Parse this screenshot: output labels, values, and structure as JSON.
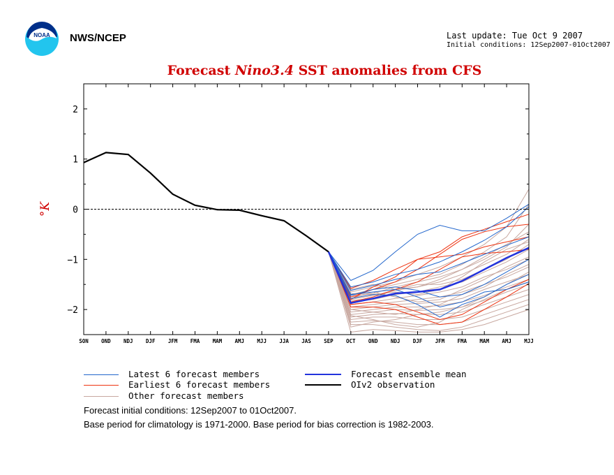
{
  "header": {
    "org": "NWS/NCEP",
    "last_update": "Last update: Tue Oct 9 2007",
    "initial_conditions": "Initial conditions: 12Sep2007-01Oct2007",
    "logo_text": "NOAA"
  },
  "chart_data": {
    "type": "line",
    "title_prefix": "Forecast",
    "title_italic": "Nino3.4",
    "title_suffix": "SST anomalies from CFS",
    "ylabel": "°K",
    "ylim": [
      -2.5,
      2.5
    ],
    "yticks": [
      2,
      1,
      0,
      -1,
      -2
    ],
    "categories": [
      "SON",
      "OND",
      "NDJ",
      "DJF",
      "JFM",
      "FMA",
      "MAM",
      "AMJ",
      "MJJ",
      "JJA",
      "JAS",
      "SEP",
      "OCT",
      "OND",
      "NDJ",
      "DJF",
      "JFM",
      "FMA",
      "MAM",
      "AMJ",
      "MJJ"
    ],
    "zero_line": "dashed",
    "observation": {
      "name": "OIv2 observation",
      "color": "#000000",
      "values": [
        0.93,
        1.13,
        1.09,
        0.72,
        0.3,
        0.08,
        -0.01,
        -0.02,
        -0.13,
        -0.23,
        -0.53,
        -0.85
      ]
    },
    "ensemble_mean": {
      "name": "Forecast ensemble mean",
      "color": "#2233dd",
      "start_index": 11,
      "values": [
        -0.85,
        -1.87,
        -1.78,
        -1.68,
        -1.65,
        -1.6,
        -1.43,
        -1.2,
        -0.97,
        -0.77
      ]
    },
    "latest_members": {
      "name": "Latest 6 forecast members",
      "color": "#2266cc",
      "start_index": 11,
      "members": [
        [
          -0.85,
          -1.42,
          -1.22,
          -0.85,
          -0.5,
          -0.32,
          -0.43,
          -0.43,
          -0.18,
          0.1
        ],
        [
          -0.85,
          -1.55,
          -1.45,
          -1.3,
          -1.2,
          -1.05,
          -0.85,
          -0.62,
          -0.35,
          0.05
        ],
        [
          -0.85,
          -1.62,
          -1.52,
          -1.4,
          -1.3,
          -1.25,
          -1.08,
          -0.9,
          -0.72,
          -0.55
        ],
        [
          -0.85,
          -1.72,
          -1.6,
          -1.55,
          -1.62,
          -1.75,
          -1.7,
          -1.5,
          -1.25,
          -1.0
        ],
        [
          -0.85,
          -1.78,
          -1.7,
          -1.72,
          -1.9,
          -2.15,
          -1.9,
          -1.75,
          -1.5,
          -1.3
        ],
        [
          -0.85,
          -1.7,
          -1.65,
          -1.6,
          -1.75,
          -1.95,
          -1.85,
          -1.65,
          -1.6,
          -1.45
        ]
      ]
    },
    "earliest_members": {
      "name": "Earliest 6 forecast members",
      "color": "#ee3311",
      "start_index": 11,
      "members": [
        [
          -0.85,
          -1.58,
          -1.42,
          -1.2,
          -1.0,
          -0.85,
          -0.55,
          -0.4,
          -0.25,
          -0.1
        ],
        [
          -0.85,
          -1.75,
          -1.6,
          -1.45,
          -1.2,
          -0.9,
          -0.6,
          -0.45,
          -0.35,
          -0.3
        ],
        [
          -0.85,
          -1.8,
          -1.55,
          -1.35,
          -1.0,
          -0.95,
          -0.9,
          -0.75,
          -0.65,
          -0.55
        ],
        [
          -0.85,
          -1.85,
          -1.75,
          -1.6,
          -1.45,
          -1.2,
          -0.95,
          -0.88,
          -0.85,
          -0.8
        ],
        [
          -0.85,
          -1.95,
          -1.95,
          -2.0,
          -2.15,
          -2.3,
          -2.25,
          -2.0,
          -1.75,
          -1.48
        ],
        [
          -0.85,
          -1.9,
          -1.85,
          -1.9,
          -2.05,
          -2.2,
          -2.1,
          -1.85,
          -1.6,
          -1.4
        ]
      ]
    },
    "other_members": {
      "name": "Other forecast members",
      "color": "#c8a8a0",
      "start_index": 11,
      "members": [
        [
          -0.85,
          -1.65,
          -1.55,
          -1.45,
          -1.3,
          -1.15,
          -0.95,
          -0.7,
          -0.35,
          0.4
        ],
        [
          -0.85,
          -1.7,
          -1.6,
          -1.5,
          -1.4,
          -1.3,
          -1.1,
          -0.85,
          -0.55,
          0.1
        ],
        [
          -0.85,
          -1.75,
          -1.68,
          -1.55,
          -1.45,
          -1.35,
          -1.2,
          -1.0,
          -0.75,
          -0.3
        ],
        [
          -0.85,
          -1.8,
          -1.72,
          -1.62,
          -1.55,
          -1.45,
          -1.3,
          -1.1,
          -0.9,
          -0.6
        ],
        [
          -0.85,
          -1.85,
          -1.8,
          -1.7,
          -1.65,
          -1.55,
          -1.45,
          -1.25,
          -1.05,
          -0.8
        ],
        [
          -0.85,
          -1.9,
          -1.85,
          -1.78,
          -1.72,
          -1.65,
          -1.55,
          -1.35,
          -1.2,
          -1.0
        ],
        [
          -0.85,
          -1.95,
          -1.9,
          -1.85,
          -1.8,
          -1.75,
          -1.65,
          -1.5,
          -1.35,
          -1.15
        ],
        [
          -0.85,
          -2.0,
          -1.95,
          -1.9,
          -1.88,
          -1.85,
          -1.78,
          -1.6,
          -1.45,
          -1.3
        ],
        [
          -0.85,
          -2.05,
          -2.0,
          -1.95,
          -1.95,
          -1.92,
          -1.85,
          -1.72,
          -1.55,
          -1.4
        ],
        [
          -0.85,
          -2.1,
          -2.05,
          -2.0,
          -2.02,
          -2.0,
          -1.95,
          -1.82,
          -1.65,
          -1.5
        ],
        [
          -0.85,
          -2.15,
          -2.1,
          -2.08,
          -2.1,
          -2.1,
          -2.05,
          -1.9,
          -1.75,
          -1.6
        ],
        [
          -0.85,
          -2.2,
          -2.15,
          -2.15,
          -2.2,
          -2.2,
          -2.15,
          -2.0,
          -1.85,
          -1.7
        ],
        [
          -0.85,
          -2.25,
          -2.22,
          -2.25,
          -2.3,
          -2.3,
          -2.25,
          -2.1,
          -1.95,
          -1.8
        ],
        [
          -0.85,
          -2.3,
          -2.3,
          -2.35,
          -2.4,
          -2.42,
          -2.35,
          -2.2,
          -2.05,
          -1.9
        ],
        [
          -0.85,
          -2.45,
          -2.4,
          -2.42,
          -2.45,
          -2.45,
          -2.4,
          -2.3,
          -2.15,
          -2.0
        ],
        [
          -0.85,
          -1.6,
          -1.5,
          -1.6,
          -1.55,
          -1.4,
          -1.2,
          -0.95,
          -0.7,
          -0.45
        ],
        [
          -0.85,
          -1.68,
          -1.7,
          -1.65,
          -1.7,
          -1.6,
          -1.35,
          -1.05,
          -0.8,
          -0.65
        ],
        [
          -0.85,
          -1.78,
          -1.65,
          -1.75,
          -1.85,
          -1.8,
          -1.6,
          -1.4,
          -1.15,
          -0.95
        ],
        [
          -0.85,
          -2.0,
          -2.05,
          -2.1,
          -2.0,
          -1.9,
          -1.7,
          -1.55,
          -1.3,
          -1.1
        ],
        [
          -0.85,
          -2.12,
          -2.2,
          -2.3,
          -2.35,
          -2.25,
          -2.0,
          -1.8,
          -1.6,
          -1.45
        ],
        [
          -0.85,
          -2.35,
          -2.25,
          -2.2,
          -2.1,
          -2.05,
          -1.95,
          -1.75,
          -1.5,
          -1.25
        ],
        [
          -0.85,
          -1.82,
          -1.78,
          -1.6,
          -1.5,
          -1.5,
          -1.4,
          -1.2,
          -1.0,
          -0.7
        ]
      ]
    }
  },
  "legend": {
    "latest": "Latest 6 forecast members",
    "earliest": "Earliest 6 forecast members",
    "other": "Other forecast members",
    "mean": "Forecast ensemble mean",
    "obs": "OIv2 observation"
  },
  "notes": {
    "line1": "Forecast initial conditions: 12Sep2007 to 01Oct2007.",
    "line2": "Base period for climatology is 1971-2000. Base period for bias correction is 1982-2003."
  },
  "colors": {
    "title": "#d00000",
    "latest": "#2266cc",
    "earliest": "#ee3311",
    "other": "#c8a8a0",
    "mean": "#2233dd",
    "obs": "#000000"
  }
}
